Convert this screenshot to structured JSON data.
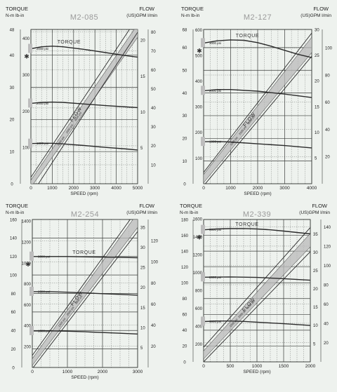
{
  "colors": {
    "background": "#eef2ee",
    "grid": "#3a3d3a",
    "curve": "#2a2a2a",
    "band_fill": "#b9b9b9",
    "title_text": "#9a9a9a",
    "marker_fill": "#bdbdbd"
  },
  "chart_data": [
    {
      "type": "line",
      "title": "M2-085",
      "left_axis_title": "TORQUE",
      "left_axis_units": "N-m  lb-in",
      "right_axis_title": "FLOW",
      "right_axis_units": "(US)GPM  l/min",
      "xlabel": "SPEED (rpm)",
      "xlim": [
        0,
        5000
      ],
      "x_ticks": [
        "0",
        "1000",
        "2000",
        "3000",
        "4000",
        "5000"
      ],
      "x_tick_values": [
        0,
        1000,
        2000,
        3000,
        4000,
        5000
      ],
      "nm_ticks": [
        "0",
        "10",
        "20",
        "30",
        "40",
        "48"
      ],
      "nm_tick_values": [
        0,
        10,
        20,
        30,
        40,
        48
      ],
      "nm_lim": [
        0,
        48
      ],
      "lbin_ticks": [
        "100",
        "200",
        "300",
        "400"
      ],
      "lbin_tick_values": [
        100,
        200,
        300,
        400
      ],
      "lbin_lim": [
        0,
        425
      ],
      "gpm_ticks": [
        "5",
        "10",
        "15",
        "20"
      ],
      "gpm_tick_values": [
        5,
        10,
        15,
        20
      ],
      "gpm_lim": [
        0,
        21.5
      ],
      "lmin_ticks": [
        "10",
        "20",
        "30",
        "40",
        "50",
        "60",
        "70",
        "80"
      ],
      "lmin_tick_values": [
        10,
        20,
        30,
        40,
        50,
        60,
        70,
        80
      ],
      "grid": true,
      "flow_label": "FLOW",
      "flow_band": {
        "x": [
          0,
          5000
        ],
        "gpm_low": [
          -0.5,
          20.4
        ],
        "gpm_high": [
          0.5,
          22.2
        ]
      },
      "flow_lines": [
        {
          "x": [
            0,
            5000
          ],
          "gpm": [
            0.9,
            23.2
          ]
        },
        {
          "x": [
            0,
            5000
          ],
          "gpm": [
            -1.6,
            21.1
          ]
        }
      ],
      "band_labels": [
        "1000 psi",
        "2000 psi",
        "3000 psi"
      ],
      "torque_label": "TORQUE",
      "series": [
        {
          "name": "3000 psi",
          "x": [
            0,
            500,
            1000,
            1500,
            2500,
            3500,
            4500,
            5000
          ],
          "y": [
            42,
            42.6,
            42.8,
            42.6,
            41.8,
            40.8,
            39.8,
            39.4
          ]
        },
        {
          "name": "2000 psi",
          "x": [
            0,
            500,
            1000,
            1500,
            2500,
            3500,
            4500,
            5000
          ],
          "y": [
            25,
            25.3,
            25.4,
            25.3,
            24.8,
            24.3,
            23.9,
            23.7
          ]
        },
        {
          "name": "1000 psi",
          "x": [
            0,
            500,
            1000,
            1500,
            2500,
            3500,
            4500,
            5000
          ],
          "y": [
            12.5,
            12.6,
            12.6,
            12.4,
            11.9,
            11.3,
            10.8,
            10.5
          ]
        }
      ],
      "star_label": "✱"
    },
    {
      "type": "line",
      "title": "M2-127",
      "left_axis_title": "TORQUE",
      "left_axis_units": "N-m  lb-in",
      "right_axis_title": "FLOW",
      "right_axis_units": "(US)GPM  l/min",
      "xlabel": "SPEED (rpm)",
      "xlim": [
        0,
        4000
      ],
      "x_ticks": [
        "0",
        "1000",
        "2000",
        "3000",
        "4000"
      ],
      "x_tick_values": [
        0,
        1000,
        2000,
        3000,
        4000
      ],
      "nm_ticks": [
        "0",
        "10",
        "20",
        "30",
        "40",
        "50",
        "60",
        "68"
      ],
      "nm_tick_values": [
        0,
        10,
        20,
        30,
        40,
        50,
        60,
        68
      ],
      "nm_lim": [
        0,
        68
      ],
      "lbin_ticks": [
        "100",
        "200",
        "300",
        "400",
        "500",
        "600"
      ],
      "lbin_tick_values": [
        100,
        200,
        300,
        400,
        500,
        600
      ],
      "lbin_lim": [
        0,
        602
      ],
      "gpm_ticks": [
        "5",
        "10",
        "15",
        "20",
        "25",
        "30"
      ],
      "gpm_tick_values": [
        5,
        10,
        15,
        20,
        25,
        30
      ],
      "gpm_lim": [
        0,
        30
      ],
      "lmin_ticks": [
        "20",
        "40",
        "60",
        "80",
        "100"
      ],
      "lmin_tick_values": [
        20,
        40,
        60,
        80,
        100
      ],
      "grid": true,
      "flow_label": "FLOW",
      "flow_band": {
        "x": [
          0,
          4000
        ],
        "gpm_low": [
          0.2,
          25.5
        ],
        "gpm_high": [
          1.8,
          28.5
        ]
      },
      "flow_lines": [
        {
          "x": [
            0,
            4000
          ],
          "gpm": [
            2.2,
            29.3
          ]
        },
        {
          "x": [
            0,
            4000
          ],
          "gpm": [
            -0.4,
            24.8
          ]
        }
      ],
      "band_labels": [
        "1000 psi",
        "2000 psi",
        "3000 psi"
      ],
      "torque_label": "TORQUE",
      "series": [
        {
          "name": "3000 psi",
          "x": [
            0,
            500,
            1000,
            1500,
            2000,
            2500,
            3000,
            3500,
            4000
          ],
          "y": [
            62,
            63,
            63.4,
            63.2,
            62.2,
            60.6,
            58.8,
            57,
            55.6
          ]
        },
        {
          "name": "2000 psi",
          "x": [
            0,
            500,
            1000,
            2000,
            3000,
            4000
          ],
          "y": [
            41,
            41.5,
            41.5,
            40.8,
            39.5,
            38
          ]
        },
        {
          "name": "1000 psi",
          "x": [
            0,
            500,
            1000,
            2000,
            3000,
            4000
          ],
          "y": [
            18.5,
            18.6,
            18.4,
            17.6,
            16.8,
            15.8
          ]
        }
      ],
      "star_label": "✱"
    },
    {
      "type": "line",
      "title": "M2-254",
      "left_axis_title": "TORQUE",
      "left_axis_units": "N-m  lb-in",
      "right_axis_title": "FLOW",
      "right_axis_units": "(US)GPM  l/min",
      "xlabel": "SPEED (rpm)",
      "xlim": [
        0,
        3000
      ],
      "x_ticks": [
        "0",
        "1000",
        "2000",
        "3000"
      ],
      "x_tick_values": [
        0,
        1000,
        2000,
        3000
      ],
      "nm_ticks": [
        "0",
        "20",
        "40",
        "60",
        "80",
        "100",
        "120",
        "140",
        "160"
      ],
      "nm_tick_values": [
        0,
        20,
        40,
        60,
        80,
        100,
        120,
        140,
        160
      ],
      "nm_lim": [
        0,
        160
      ],
      "lbin_ticks": [
        "200",
        "400",
        "600",
        "800",
        "1000",
        "1200",
        "1400"
      ],
      "lbin_tick_values": [
        200,
        400,
        600,
        800,
        1000,
        1200,
        1400
      ],
      "lbin_lim": [
        0,
        1416
      ],
      "gpm_ticks": [
        "5",
        "10",
        "15",
        "20",
        "25",
        "30",
        "35"
      ],
      "gpm_tick_values": [
        5,
        10,
        15,
        20,
        25,
        30,
        35
      ],
      "gpm_lim": [
        0,
        37
      ],
      "lmin_ticks": [
        "20",
        "40",
        "60",
        "80",
        "100",
        "120"
      ],
      "lmin_tick_values": [
        20,
        40,
        60,
        80,
        100,
        120
      ],
      "grid": true,
      "flow_label": "FLOW",
      "flow_band": {
        "x": [
          0,
          3000
        ],
        "gpm_low": [
          0.5,
          35.0
        ],
        "gpm_high": [
          2.2,
          38.6
        ]
      },
      "flow_lines": [
        {
          "x": [
            0,
            3000
          ],
          "gpm": [
            3.0,
            39.6
          ]
        },
        {
          "x": [
            0,
            3000
          ],
          "gpm": [
            -0.3,
            34.0
          ]
        }
      ],
      "band_labels": [
        "1000 psi",
        "2000 psi",
        "3000 psi"
      ],
      "torque_label": "TORQUE",
      "series": [
        {
          "name": "3000 psi",
          "x": [
            0,
            500,
            1000,
            1500,
            2000,
            2500,
            3000
          ],
          "y": [
            120,
            120,
            120,
            119.6,
            119.3,
            119,
            118.6
          ]
        },
        {
          "name": "2000 psi",
          "x": [
            0,
            500,
            1000,
            1500,
            2000,
            2500,
            3000
          ],
          "y": [
            82,
            82,
            81.4,
            80.6,
            79.8,
            79,
            78.2
          ]
        },
        {
          "name": "1000 psi",
          "x": [
            0,
            500,
            1000,
            1500,
            2000,
            2500,
            3000
          ],
          "y": [
            39.5,
            39.6,
            39.2,
            38.6,
            37.8,
            37,
            36.2
          ]
        }
      ],
      "star_label": "✱"
    },
    {
      "type": "line",
      "title": "M2-339",
      "left_axis_title": "TORQUE",
      "left_axis_units": "N-m  lb-in",
      "right_axis_title": "FLOW",
      "right_axis_units": "(US)GPM  l/min",
      "xlabel": "SPEED (rpm)",
      "xlim": [
        0,
        2000
      ],
      "x_ticks": [
        "0",
        "500",
        "1000",
        "1500",
        "2000"
      ],
      "x_tick_values": [
        0,
        500,
        1000,
        1500,
        2000
      ],
      "nm_ticks": [
        "0",
        "20",
        "40",
        "60",
        "80",
        "100",
        "120",
        "140",
        "160",
        "180"
      ],
      "nm_tick_values": [
        0,
        20,
        40,
        60,
        80,
        100,
        120,
        140,
        160,
        180
      ],
      "nm_lim": [
        0,
        180
      ],
      "lbin_ticks": [
        "200",
        "400",
        "600",
        "800",
        "1000",
        "1200",
        "1400",
        "1600"
      ],
      "lbin_tick_values": [
        200,
        400,
        600,
        800,
        1000,
        1200,
        1400,
        1600
      ],
      "lbin_lim": [
        0,
        1593
      ],
      "gpm_ticks": [
        "5",
        "10",
        "15",
        "20",
        "25",
        "30",
        "35"
      ],
      "gpm_tick_values": [
        5,
        10,
        15,
        20,
        25,
        30,
        35
      ],
      "gpm_lim": [
        0,
        39
      ],
      "lmin_ticks": [
        "20",
        "40",
        "60",
        "80",
        "100",
        "120",
        "140"
      ],
      "lmin_tick_values": [
        20,
        40,
        60,
        80,
        100,
        120,
        140
      ],
      "grid": true,
      "flow_label": "FLOW",
      "flow_band": {
        "x": [
          0,
          2000
        ],
        "gpm_low": [
          0.8,
          31.5
        ],
        "gpm_high": [
          3.0,
          35.2
        ]
      },
      "flow_lines": [
        {
          "x": [
            0,
            2000
          ],
          "gpm": [
            4.0,
            36.8
          ]
        },
        {
          "x": [
            0,
            2000
          ],
          "gpm": [
            0,
            30.2
          ]
        }
      ],
      "band_labels": [
        "1000 psi",
        "2000 psi",
        "3000 psi"
      ],
      "torque_label": "TORQUE",
      "series": [
        {
          "name": "3000 psi",
          "x": [
            0,
            250,
            500,
            750,
            1000,
            1250,
            1500,
            1750,
            2000
          ],
          "y": [
            167,
            168,
            168.5,
            168.6,
            168,
            167,
            165.4,
            163.6,
            161.8
          ]
        },
        {
          "name": "2000 psi",
          "x": [
            0,
            500,
            1000,
            1500,
            2000
          ],
          "y": [
            107,
            107.4,
            106.8,
            105.2,
            103.2
          ]
        },
        {
          "name": "1000 psi",
          "x": [
            0,
            250,
            500,
            750,
            1000,
            1500,
            2000
          ],
          "y": [
            51,
            51.6,
            51.6,
            51.2,
            50.2,
            48.2,
            46
          ]
        }
      ],
      "star_label": "✱"
    }
  ]
}
